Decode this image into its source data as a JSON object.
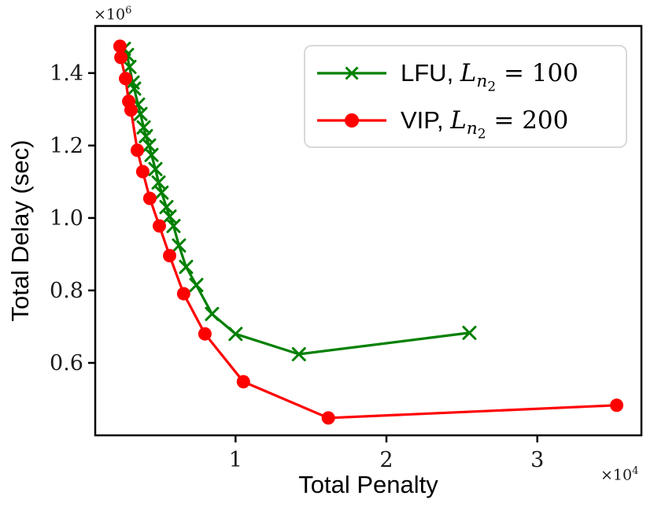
{
  "chart_data": {
    "type": "line",
    "title": "",
    "xlabel": "Total Penalty",
    "ylabel": "Total Delay (sec)",
    "x_offset_label": {
      "base": "×10",
      "exp": "4"
    },
    "y_offset_label": {
      "base": "×10",
      "exp": "6"
    },
    "xlim": [
      700,
      36900
    ],
    "ylim": [
      400000,
      1530000
    ],
    "grid": false,
    "legend_position": "upper right",
    "x_ticks": {
      "values": [
        10000,
        20000,
        30000
      ],
      "labels": [
        "1",
        "2",
        "3"
      ]
    },
    "y_ticks": {
      "values": [
        600000,
        800000,
        1000000,
        1200000,
        1400000
      ],
      "labels": [
        "0.6",
        "0.8",
        "1.0",
        "1.2",
        "1.4"
      ]
    },
    "series": [
      {
        "name": "LFU, L_n2 = 100",
        "color": "#008000",
        "marker": "x",
        "x": [
          2600,
          2810,
          2970,
          3180,
          3280,
          3540,
          3700,
          3910,
          4060,
          4270,
          4430,
          4690,
          4900,
          5100,
          5420,
          5630,
          5890,
          6250,
          6720,
          7400,
          8440,
          10000,
          14200,
          25500
        ],
        "y": [
          1467000,
          1450000,
          1417000,
          1374000,
          1357000,
          1313000,
          1287000,
          1250000,
          1226000,
          1200000,
          1174000,
          1135000,
          1098000,
          1070000,
          1030000,
          1004000,
          978000,
          924000,
          865000,
          815000,
          735000,
          680000,
          624000,
          683000
        ]
      },
      {
        "name": "VIP, L_n2 = 200",
        "color": "#ff0000",
        "marker": "circle",
        "x": [
          2340,
          2400,
          2710,
          2920,
          3070,
          3490,
          3850,
          4320,
          4950,
          5630,
          6560,
          7970,
          10520,
          16150,
          35260
        ],
        "y": [
          1474000,
          1443000,
          1385000,
          1322000,
          1298000,
          1187000,
          1128000,
          1054000,
          978000,
          896000,
          791000,
          680000,
          548000,
          448000,
          483000
        ]
      }
    ]
  },
  "legend": {
    "entries": [
      {
        "prefix": "LFU, ",
        "math_var": "L",
        "math_sub": "n",
        "math_subsub": "2",
        "math_rhs": " = 100"
      },
      {
        "prefix": "VIP, ",
        "math_var": "L",
        "math_sub": "n",
        "math_subsub": "2",
        "math_rhs": " = 200"
      }
    ]
  }
}
